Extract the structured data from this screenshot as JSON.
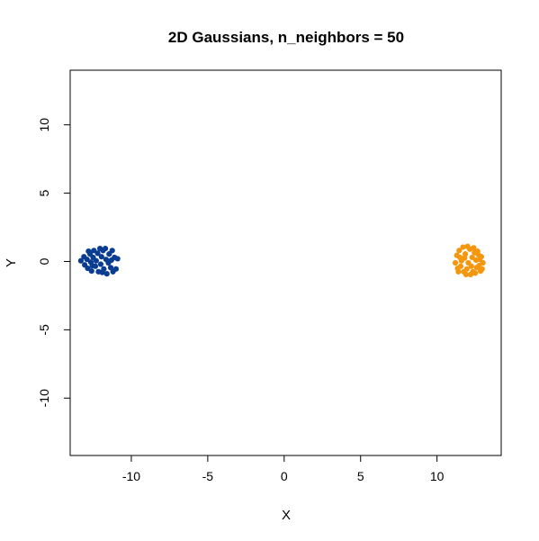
{
  "chart_data": {
    "type": "scatter",
    "title": "2D Gaussians, n_neighbors = 50",
    "xlabel": "X",
    "ylabel": "Y",
    "xlim": [
      -14,
      14.2
    ],
    "ylim": [
      -14.2,
      14
    ],
    "xticks": [
      -10,
      -5,
      0,
      5,
      10
    ],
    "yticks": [
      -10,
      -5,
      0,
      5,
      10
    ],
    "grid": false,
    "legend": "none",
    "series": [
      {
        "color": "#0a3d91",
        "points": [
          [
            -13.3,
            0.05
          ],
          [
            -13.1,
            0.35
          ],
          [
            -13.05,
            -0.25
          ],
          [
            -12.9,
            0.15
          ],
          [
            -12.85,
            -0.5
          ],
          [
            -12.7,
            0.55
          ],
          [
            -12.65,
            -0.05
          ],
          [
            -12.6,
            -0.7
          ],
          [
            -12.5,
            0.3
          ],
          [
            -12.45,
            0.8
          ],
          [
            -12.35,
            -0.35
          ],
          [
            -12.3,
            0.05
          ],
          [
            -12.2,
            0.6
          ],
          [
            -12.15,
            -0.75
          ],
          [
            -12.05,
            0.95
          ],
          [
            -12.0,
            -0.2
          ],
          [
            -11.95,
            0.35
          ],
          [
            -11.85,
            0.8
          ],
          [
            -11.8,
            -0.55
          ],
          [
            -11.7,
            0.95
          ],
          [
            -11.65,
            0.15
          ],
          [
            -11.6,
            -0.9
          ],
          [
            -11.5,
            -0.1
          ],
          [
            -11.45,
            0.55
          ],
          [
            -11.35,
            -0.45
          ],
          [
            -11.3,
            0.1
          ],
          [
            -11.2,
            -0.75
          ],
          [
            -11.1,
            0.3
          ],
          [
            -11.0,
            -0.55
          ],
          [
            -10.9,
            0.2
          ],
          [
            -11.25,
            0.8
          ],
          [
            -12.8,
            0.75
          ],
          [
            -12.55,
            -0.3
          ],
          [
            -11.9,
            -0.8
          ]
        ]
      },
      {
        "color": "#f5960f",
        "points": [
          [
            11.2,
            -0.1
          ],
          [
            11.3,
            0.45
          ],
          [
            11.35,
            -0.5
          ],
          [
            11.45,
            0.8
          ],
          [
            11.55,
            -0.35
          ],
          [
            11.6,
            0.05
          ],
          [
            11.7,
            1.05
          ],
          [
            11.75,
            -0.75
          ],
          [
            11.85,
            0.55
          ],
          [
            11.9,
            -0.95
          ],
          [
            12.0,
            1.1
          ],
          [
            12.05,
            -0.1
          ],
          [
            12.15,
            0.9
          ],
          [
            12.2,
            -0.95
          ],
          [
            12.3,
            0.3
          ],
          [
            12.35,
            -0.75
          ],
          [
            12.45,
            0.65
          ],
          [
            12.5,
            -0.85
          ],
          [
            12.55,
            0.1
          ],
          [
            12.6,
            -0.45
          ],
          [
            12.7,
            0.5
          ],
          [
            12.75,
            -0.3
          ],
          [
            12.8,
            0.15
          ],
          [
            12.85,
            -0.7
          ],
          [
            12.9,
            0.35
          ],
          [
            12.95,
            -0.55
          ],
          [
            13.0,
            -0.1
          ],
          [
            11.8,
            0.25
          ],
          [
            12.25,
            -0.35
          ],
          [
            11.5,
            0.3
          ],
          [
            12.65,
            0.75
          ],
          [
            11.95,
            -0.55
          ],
          [
            12.4,
            1.0
          ],
          [
            11.4,
            -0.75
          ]
        ]
      }
    ]
  }
}
